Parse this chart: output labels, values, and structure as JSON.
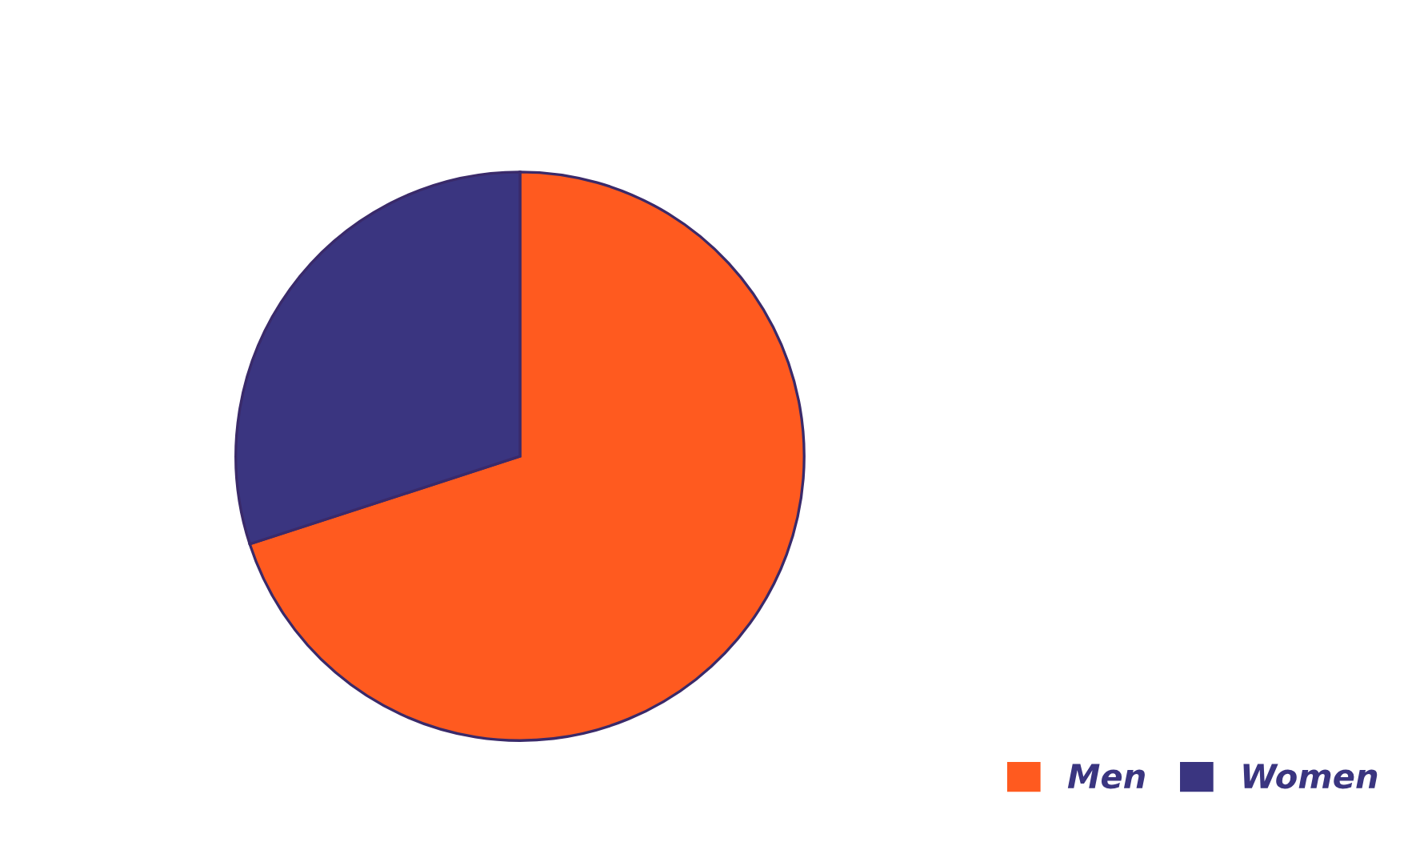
{
  "chart_data": {
    "type": "pie",
    "categories": [
      "Men",
      "Women"
    ],
    "values": [
      70,
      30
    ],
    "colors": [
      "#ff5a1f",
      "#3a3580"
    ],
    "legend": "bottom right"
  }
}
